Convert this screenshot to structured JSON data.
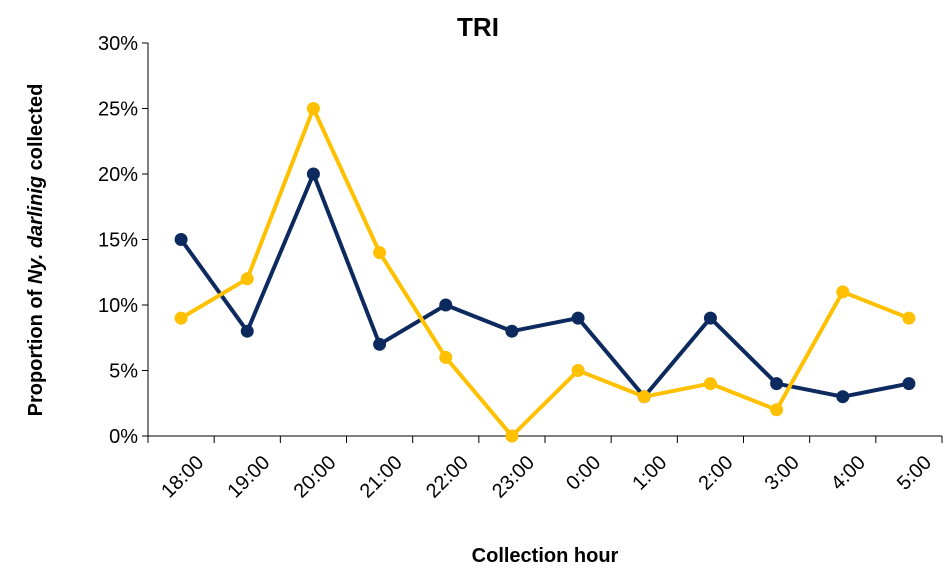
{
  "chart_data": {
    "type": "line",
    "title": "TRI",
    "x_label": "Collection hour",
    "y_label": {
      "before": "Proportion of",
      "italic": "Ny. darlinig",
      "after": "collected"
    },
    "categories": [
      "18:00",
      "19:00",
      "20:00",
      "21:00",
      "22:00",
      "23:00",
      "0:00",
      "1:00",
      "2:00",
      "3:00",
      "4:00",
      "5:00"
    ],
    "series": [
      {
        "color": "#0d2a5e",
        "values": [
          15,
          8,
          20,
          7,
          10,
          8,
          9,
          3,
          9,
          4,
          3,
          4
        ]
      },
      {
        "color": "#ffc000",
        "values": [
          9,
          12,
          25,
          14,
          6,
          0,
          5,
          3,
          4,
          2,
          11,
          9
        ]
      }
    ],
    "ylim": [
      0,
      30
    ],
    "yticks": [
      {
        "value": 0,
        "label": "0%"
      },
      {
        "value": 5,
        "label": "5%"
      },
      {
        "value": 10,
        "label": "10%"
      },
      {
        "value": 15,
        "label": "15%"
      },
      {
        "value": 20,
        "label": "20%"
      },
      {
        "value": 25,
        "label": "25%"
      },
      {
        "value": 30,
        "label": "30%"
      }
    ]
  }
}
